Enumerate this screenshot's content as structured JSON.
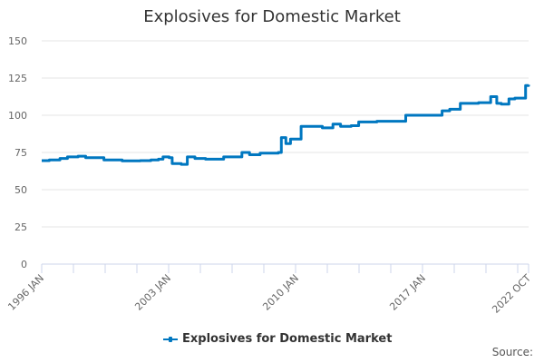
{
  "title": "Explosives for Domestic Market",
  "legend": {
    "label": "Explosives for Domestic Market",
    "color": "#0077c0"
  },
  "source_label": "Source:",
  "colors": {
    "line": "#0077c0",
    "grid": "#e6e6e6",
    "axis": "#ccd6eb",
    "text": "#666666"
  },
  "chart_data": {
    "type": "line",
    "title": "Explosives for Domestic Market",
    "xlabel": "",
    "ylabel": "",
    "ylim": [
      0,
      150
    ],
    "yticks": [
      0,
      25,
      50,
      75,
      100,
      125,
      150
    ],
    "xtick_labels": [
      "1996 JAN",
      "2003 JAN",
      "2010 JAN",
      "2017 JAN",
      "2022 OCT"
    ],
    "grid": true,
    "legend_position": "bottom",
    "series": [
      {
        "name": "Explosives for Domestic Market",
        "points": [
          [
            "1996-01",
            69.5
          ],
          [
            "1996-06",
            70.0
          ],
          [
            "1997-01",
            71.0
          ],
          [
            "1997-06",
            72.0
          ],
          [
            "1998-01",
            72.5
          ],
          [
            "1998-06",
            71.5
          ],
          [
            "1999-01",
            71.5
          ],
          [
            "1999-06",
            70.0
          ],
          [
            "2000-01",
            70.0
          ],
          [
            "2000-06",
            69.3
          ],
          [
            "2001-01",
            69.3
          ],
          [
            "2001-06",
            69.5
          ],
          [
            "2002-01",
            70.0
          ],
          [
            "2002-06",
            70.5
          ],
          [
            "2002-09",
            72.0
          ],
          [
            "2003-01",
            71.5
          ],
          [
            "2003-03",
            67.5
          ],
          [
            "2003-09",
            67.0
          ],
          [
            "2004-01",
            72.0
          ],
          [
            "2004-06",
            71.0
          ],
          [
            "2005-01",
            70.5
          ],
          [
            "2005-06",
            70.5
          ],
          [
            "2006-01",
            72.0
          ],
          [
            "2006-06",
            72.0
          ],
          [
            "2007-01",
            75.0
          ],
          [
            "2007-06",
            73.5
          ],
          [
            "2008-01",
            74.5
          ],
          [
            "2008-06",
            74.5
          ],
          [
            "2009-01",
            75.0
          ],
          [
            "2009-03",
            85.0
          ],
          [
            "2009-06",
            81.0
          ],
          [
            "2009-09",
            84.0
          ],
          [
            "2010-03",
            84.0
          ],
          [
            "2010-04",
            92.5
          ],
          [
            "2011-01",
            92.5
          ],
          [
            "2011-06",
            91.5
          ],
          [
            "2012-01",
            94.0
          ],
          [
            "2012-06",
            92.5
          ],
          [
            "2013-01",
            93.0
          ],
          [
            "2013-06",
            95.5
          ],
          [
            "2014-01",
            95.5
          ],
          [
            "2014-06",
            96.0
          ],
          [
            "2015-01",
            96.0
          ],
          [
            "2015-06",
            96.0
          ],
          [
            "2016-01",
            100.0
          ],
          [
            "2016-06",
            100.0
          ],
          [
            "2017-01",
            100.0
          ],
          [
            "2017-06",
            100.0
          ],
          [
            "2018-01",
            103.0
          ],
          [
            "2018-06",
            104.0
          ],
          [
            "2019-01",
            108.0
          ],
          [
            "2019-06",
            108.0
          ],
          [
            "2020-01",
            108.5
          ],
          [
            "2020-06",
            108.5
          ],
          [
            "2020-09",
            112.5
          ],
          [
            "2021-01",
            108.0
          ],
          [
            "2021-04",
            107.5
          ],
          [
            "2021-09",
            111.0
          ],
          [
            "2022-01",
            111.5
          ],
          [
            "2022-06",
            111.5
          ],
          [
            "2022-08",
            120.0
          ],
          [
            "2022-10",
            120.5
          ]
        ]
      }
    ]
  }
}
